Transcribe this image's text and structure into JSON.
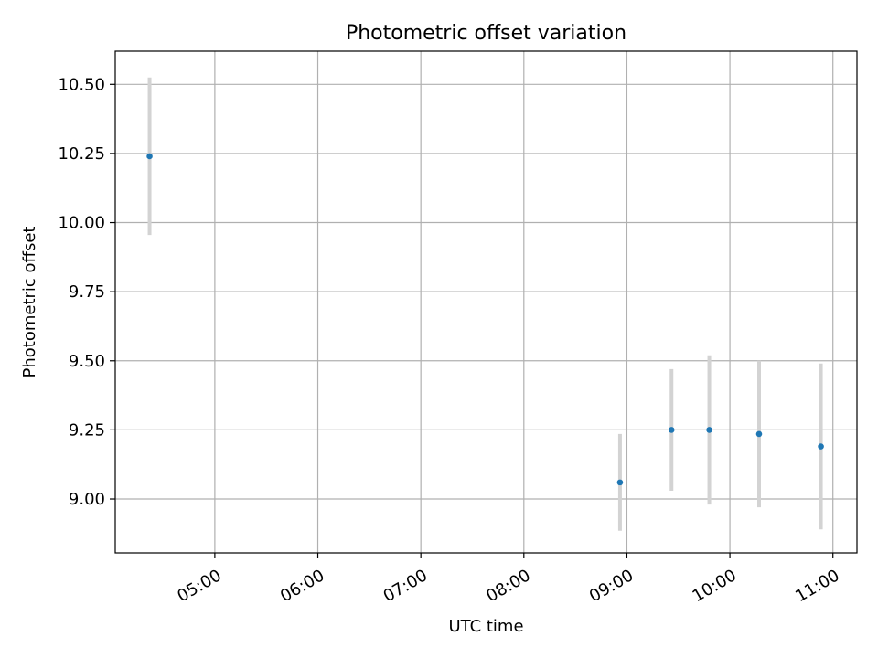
{
  "chart_data": {
    "type": "scatter",
    "title": "Photometric offset variation",
    "xlabel": "UTC time",
    "ylabel": "Photometric offset",
    "x_kind": "time",
    "xlim": [
      "04:02",
      "11:14"
    ],
    "ylim": [
      8.805,
      10.62
    ],
    "x_ticks": [
      "05:00",
      "06:00",
      "07:00",
      "08:00",
      "09:00",
      "10:00",
      "11:00"
    ],
    "y_ticks": [
      9.0,
      9.25,
      9.5,
      9.75,
      10.0,
      10.25,
      10.5
    ],
    "y_tick_labels": [
      "9.00",
      "9.25",
      "9.50",
      "9.75",
      "10.00",
      "10.25",
      "10.50"
    ],
    "grid": true,
    "legend": "none",
    "series": [
      {
        "points": [
          {
            "x": "04:22",
            "y": 10.24,
            "err": 0.285
          },
          {
            "x": "08:56",
            "y": 9.06,
            "err": 0.175
          },
          {
            "x": "09:26",
            "y": 9.25,
            "err": 0.22
          },
          {
            "x": "09:48",
            "y": 9.25,
            "err": 0.27
          },
          {
            "x": "10:17",
            "y": 9.235,
            "err": 0.265
          },
          {
            "x": "10:53",
            "y": 9.19,
            "err": 0.3
          }
        ]
      }
    ],
    "colors": {
      "marker": "#1f77b4",
      "errorbar": "#d3d3d3",
      "grid": "#b0b0b0",
      "axes": "#000000"
    }
  }
}
